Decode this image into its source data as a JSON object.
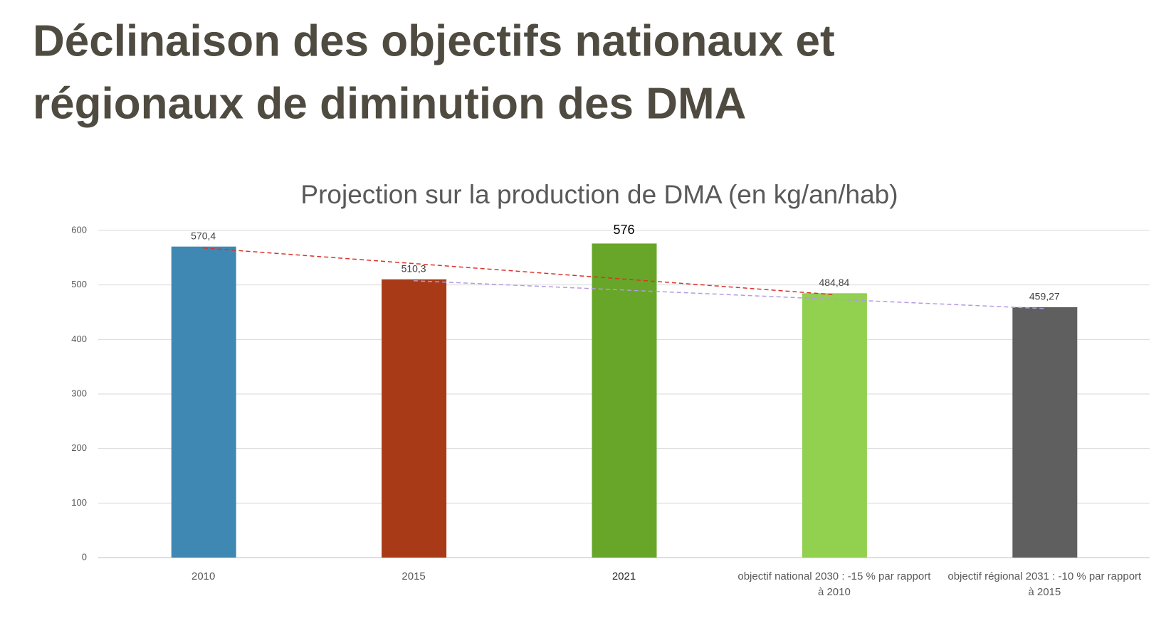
{
  "header": {
    "title_lines": [
      "Déclinaison des objectifs nationaux et",
      "régionaux de diminution des DMA"
    ]
  },
  "chart_data": {
    "type": "bar",
    "title": "Projection sur la production de DMA (en kg/an/hab)",
    "categories": [
      "2010",
      "2015",
      "2021",
      "objectif national 2030 : -15 % par rapport à 2010",
      "objectif régional 2031 : -10 % par rapport à 2015"
    ],
    "values": [
      570.4,
      510.3,
      576,
      484.84,
      459.27
    ],
    "value_labels": [
      "570,4",
      "510,3",
      "576",
      "484,84",
      "459,27"
    ],
    "colors": [
      "#3f88b3",
      "#a83a18",
      "#67a628",
      "#92d050",
      "#5f5f5f"
    ],
    "ylim": [
      0,
      600
    ],
    "yticks": [
      0,
      100,
      200,
      300,
      400,
      500,
      600
    ],
    "grid": true
  }
}
